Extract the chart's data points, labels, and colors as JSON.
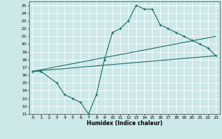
{
  "xlabel": "Humidex (Indice chaleur)",
  "ylabel": "",
  "xlim": [
    -0.5,
    23.5
  ],
  "ylim": [
    11,
    25.5
  ],
  "xticks": [
    0,
    1,
    2,
    3,
    4,
    5,
    6,
    7,
    8,
    9,
    10,
    11,
    12,
    13,
    14,
    15,
    16,
    17,
    18,
    19,
    20,
    21,
    22,
    23
  ],
  "yticks": [
    11,
    12,
    13,
    14,
    15,
    16,
    17,
    18,
    19,
    20,
    21,
    22,
    23,
    24,
    25
  ],
  "bg_color": "#cce8e8",
  "grid_color": "#ffffff",
  "line_color": "#1a6b6b",
  "line1_x": [
    0,
    1,
    3,
    4,
    5,
    6,
    7,
    8,
    9,
    10,
    11,
    12,
    13,
    14,
    15,
    16,
    17,
    18,
    19,
    20,
    21,
    22,
    23
  ],
  "line1_y": [
    16.5,
    16.5,
    15.0,
    13.5,
    13.0,
    12.5,
    11.0,
    13.5,
    18.0,
    21.5,
    22.0,
    23.0,
    25.0,
    24.5,
    24.5,
    22.5,
    22.0,
    21.5,
    21.0,
    20.5,
    20.0,
    19.5,
    18.5
  ],
  "line2_x": [
    0,
    23
  ],
  "line2_y": [
    16.5,
    21.0
  ],
  "line3_x": [
    0,
    23
  ],
  "line3_y": [
    16.5,
    18.5
  ],
  "marker": "+"
}
